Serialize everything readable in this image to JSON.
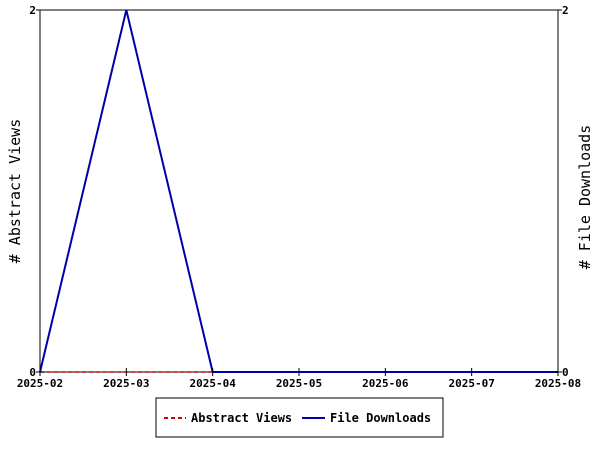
{
  "chart_data": {
    "type": "line",
    "categories": [
      "2025-02",
      "2025-03",
      "2025-04",
      "2025-05",
      "2025-06",
      "2025-07",
      "2025-08"
    ],
    "series": [
      {
        "name": "Abstract Views",
        "values": [
          0,
          0,
          0,
          null,
          null,
          null,
          null
        ],
        "color": "#cc0000",
        "style": "dashed",
        "axis": "left"
      },
      {
        "name": "File Downloads",
        "values": [
          0,
          2,
          0,
          0,
          0,
          0,
          0
        ],
        "color": "#0000aa",
        "style": "solid",
        "axis": "right"
      }
    ],
    "ylabel_left": "# Abstract Views",
    "ylabel_right": "# File Downloads",
    "ylim_left": [
      0,
      2
    ],
    "ylim_right": [
      0,
      2
    ],
    "yticks_left": [
      "0",
      "2"
    ],
    "yticks_right": [
      "0",
      "2"
    ],
    "grid": false,
    "legend_position": "bottom"
  }
}
